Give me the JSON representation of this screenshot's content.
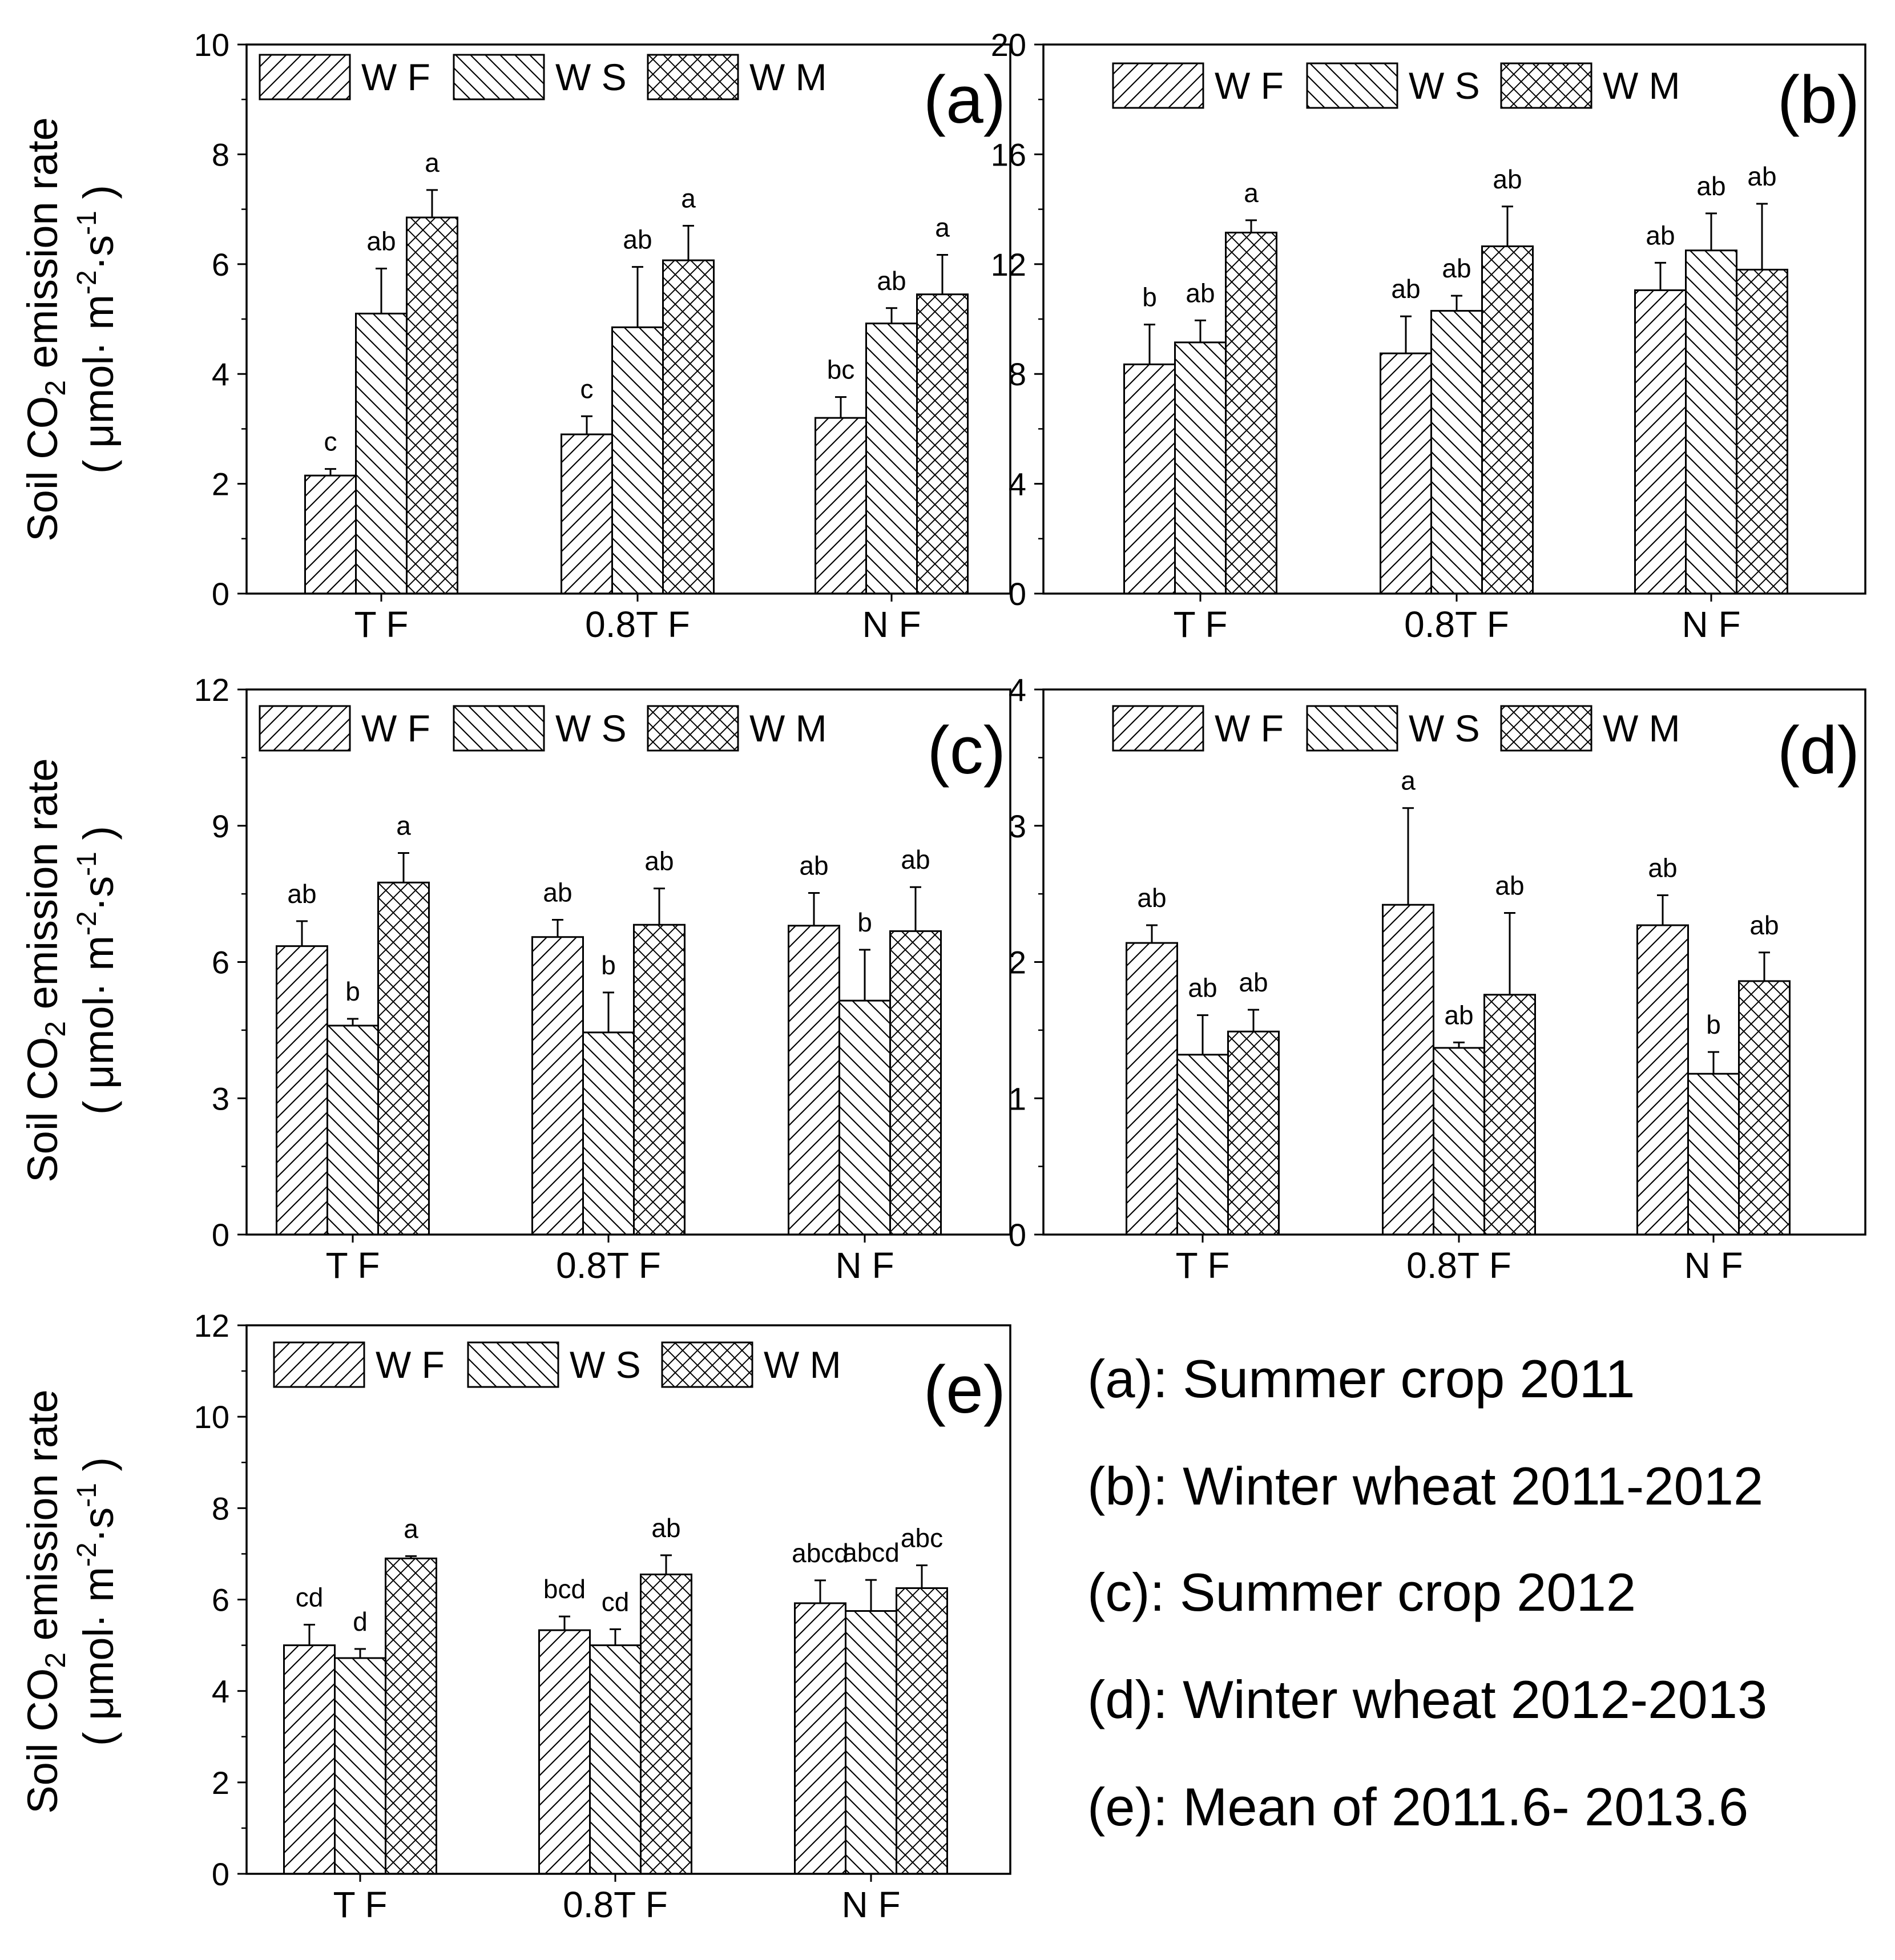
{
  "ylabel": {
    "line1": "Soil CO",
    "sub": "2",
    "line1_rest": " emission rate",
    "line2_open": "( μmol· m",
    "sup1": "-2",
    "line2_mid": "·s",
    "sup2": "-1",
    "line2_close": " )"
  },
  "legend": [
    "W F",
    "W S",
    "W M"
  ],
  "captions": [
    "(a): Summer crop 2011",
    "(b): Winter wheat 2011-2012",
    "(c): Summer crop 2012",
    "(d): Winter wheat 2012-2013",
    "(e): Mean of 2011.6- 2013.6"
  ],
  "chart_data": [
    {
      "id": "a",
      "label": "(a)",
      "type": "bar",
      "categories": [
        "T F",
        "0.8T F",
        "N F"
      ],
      "ylim": [
        0,
        10
      ],
      "yticks": [
        0,
        2,
        4,
        6,
        8,
        10
      ],
      "series": [
        {
          "name": "W F",
          "values": [
            2.15,
            2.9,
            3.2
          ],
          "errors": [
            0.12,
            0.33,
            0.38
          ],
          "letters": [
            "c",
            "c",
            "bc"
          ]
        },
        {
          "name": "W S",
          "values": [
            5.1,
            4.85,
            4.92
          ],
          "errors": [
            0.82,
            1.1,
            0.28
          ],
          "letters": [
            "ab",
            "ab",
            "ab"
          ]
        },
        {
          "name": "W M",
          "values": [
            6.85,
            6.07,
            5.45
          ],
          "errors": [
            0.5,
            0.63,
            0.72
          ],
          "letters": [
            "a",
            "a",
            "a"
          ]
        }
      ]
    },
    {
      "id": "b",
      "label": "(b)",
      "type": "bar",
      "categories": [
        "T F",
        "0.8T F",
        "N F"
      ],
      "ylim": [
        0,
        20
      ],
      "yticks": [
        0,
        4,
        8,
        12,
        16,
        20
      ],
      "series": [
        {
          "name": "W F",
          "values": [
            8.35,
            8.75,
            11.05
          ],
          "errors": [
            1.45,
            1.35,
            1.0
          ],
          "letters": [
            "b",
            "ab",
            "ab"
          ]
        },
        {
          "name": "W S",
          "values": [
            9.15,
            10.3,
            12.5
          ],
          "errors": [
            0.8,
            0.55,
            1.35
          ],
          "letters": [
            "ab",
            "ab",
            "ab"
          ]
        },
        {
          "name": "W M",
          "values": [
            13.15,
            12.65,
            11.8
          ],
          "errors": [
            0.45,
            1.45,
            2.4
          ],
          "letters": [
            "a",
            "ab",
            "ab"
          ]
        }
      ]
    },
    {
      "id": "c",
      "label": "(c)",
      "type": "bar",
      "categories": [
        "T F",
        "0.8T F",
        "N F"
      ],
      "ylim": [
        0,
        12
      ],
      "yticks": [
        0,
        3,
        6,
        9,
        12
      ],
      "series": [
        {
          "name": "W F",
          "values": [
            6.35,
            6.55,
            6.8
          ],
          "errors": [
            0.55,
            0.38,
            0.72
          ],
          "letters": [
            "ab",
            "ab",
            "ab"
          ]
        },
        {
          "name": "W S",
          "values": [
            4.6,
            4.45,
            5.15
          ],
          "errors": [
            0.15,
            0.88,
            1.12
          ],
          "letters": [
            "b",
            "b",
            "b"
          ]
        },
        {
          "name": "W M",
          "values": [
            7.75,
            6.82,
            6.68
          ],
          "errors": [
            0.65,
            0.8,
            0.97
          ],
          "letters": [
            "a",
            "ab",
            "ab"
          ]
        }
      ]
    },
    {
      "id": "d",
      "label": "(d)",
      "type": "bar",
      "categories": [
        "T F",
        "0.8T F",
        "N F"
      ],
      "ylim": [
        0,
        4
      ],
      "yticks": [
        0,
        1,
        2,
        3,
        4
      ],
      "series": [
        {
          "name": "W F",
          "values": [
            2.14,
            2.42,
            2.27
          ],
          "errors": [
            0.13,
            0.71,
            0.22
          ],
          "letters": [
            "ab",
            "a",
            "ab"
          ]
        },
        {
          "name": "W S",
          "values": [
            1.32,
            1.37,
            1.18
          ],
          "errors": [
            0.29,
            0.04,
            0.16
          ],
          "letters": [
            "ab",
            "ab",
            "b"
          ]
        },
        {
          "name": "W M",
          "values": [
            1.49,
            1.76,
            1.86
          ],
          "errors": [
            0.16,
            0.6,
            0.21
          ],
          "letters": [
            "ab",
            "ab",
            "ab"
          ]
        }
      ]
    },
    {
      "id": "e",
      "label": "(e)",
      "type": "bar",
      "categories": [
        "T F",
        "0.8T F",
        "N F"
      ],
      "ylim": [
        0,
        12
      ],
      "yticks": [
        0,
        2,
        4,
        6,
        8,
        10,
        12
      ],
      "series": [
        {
          "name": "W F",
          "values": [
            5.0,
            5.33,
            5.92
          ],
          "errors": [
            0.45,
            0.3,
            0.5
          ],
          "letters": [
            "cd",
            "bcd",
            "abcd"
          ]
        },
        {
          "name": "W S",
          "values": [
            4.72,
            5.0,
            5.75
          ],
          "errors": [
            0.2,
            0.35,
            0.68
          ],
          "letters": [
            "d",
            "cd",
            "abcd"
          ]
        },
        {
          "name": "W M",
          "values": [
            6.9,
            6.55,
            6.25
          ],
          "errors": [
            0.05,
            0.42,
            0.5
          ],
          "letters": [
            "a",
            "ab",
            "abc"
          ]
        }
      ]
    }
  ]
}
